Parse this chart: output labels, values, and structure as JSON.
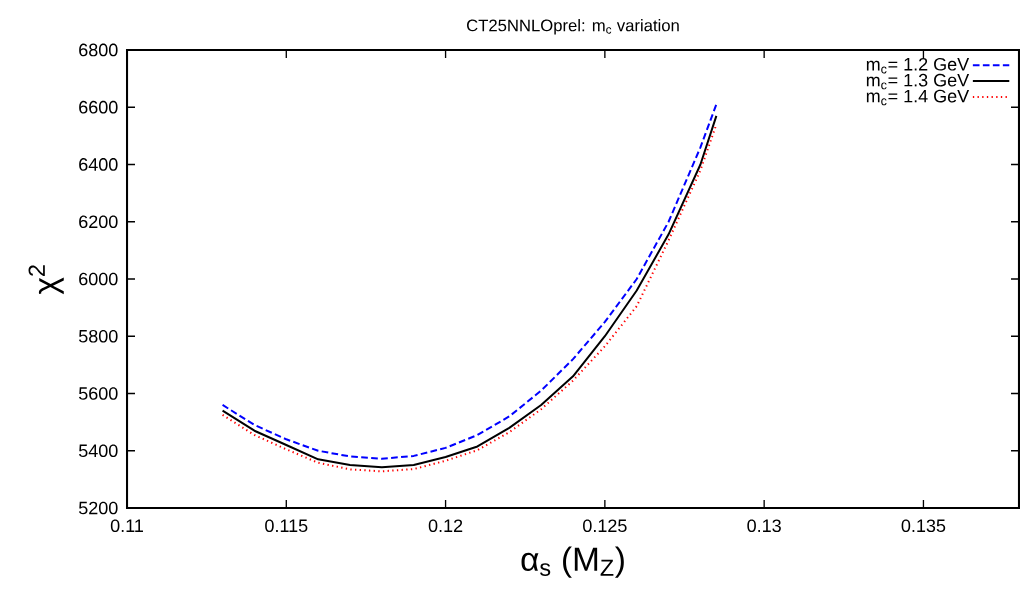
{
  "chart_data": {
    "type": "line",
    "title": "CT25NNLOprel: m$_{c}$ variation",
    "xlabel": "α$_{s}$ (M$_{Z}$)",
    "ylabel": "χ$^{2}$",
    "x": [
      0.113,
      0.114,
      0.115,
      0.116,
      0.117,
      0.118,
      0.119,
      0.12,
      0.121,
      0.122,
      0.123,
      0.124,
      0.125,
      0.126,
      0.127,
      0.128,
      0.1285
    ],
    "series": [
      {
        "name": "m$_{c}$= 1.2 GeV",
        "color": "#0000ff",
        "line_style": "dashed",
        "values": [
          5560,
          5490,
          5440,
          5400,
          5380,
          5372,
          5382,
          5410,
          5455,
          5520,
          5610,
          5720,
          5850,
          6000,
          6200,
          6460,
          6610
        ]
      },
      {
        "name": "m$_{c}$= 1.3 GeV",
        "color": "#000000",
        "line_style": "solid",
        "values": [
          5540,
          5470,
          5420,
          5370,
          5350,
          5342,
          5350,
          5378,
          5415,
          5480,
          5560,
          5660,
          5800,
          5960,
          6156,
          6400,
          6570
        ]
      },
      {
        "name": "m$_{c}$= 1.4 GeV",
        "color": "#ff0000",
        "line_style": "dotted",
        "values": [
          5525,
          5455,
          5405,
          5358,
          5335,
          5328,
          5336,
          5365,
          5402,
          5465,
          5545,
          5645,
          5765,
          5905,
          6135,
          6380,
          6540
        ]
      }
    ],
    "xlim": [
      0.11,
      0.138
    ],
    "ylim": [
      5200,
      6800
    ],
    "xticks": [
      0.11,
      0.115,
      0.12,
      0.125,
      0.13,
      0.135
    ],
    "yticks": [
      5200,
      5400,
      5600,
      5800,
      6000,
      6200,
      6400,
      6600,
      6800
    ],
    "grid": false,
    "legend": "top right"
  }
}
